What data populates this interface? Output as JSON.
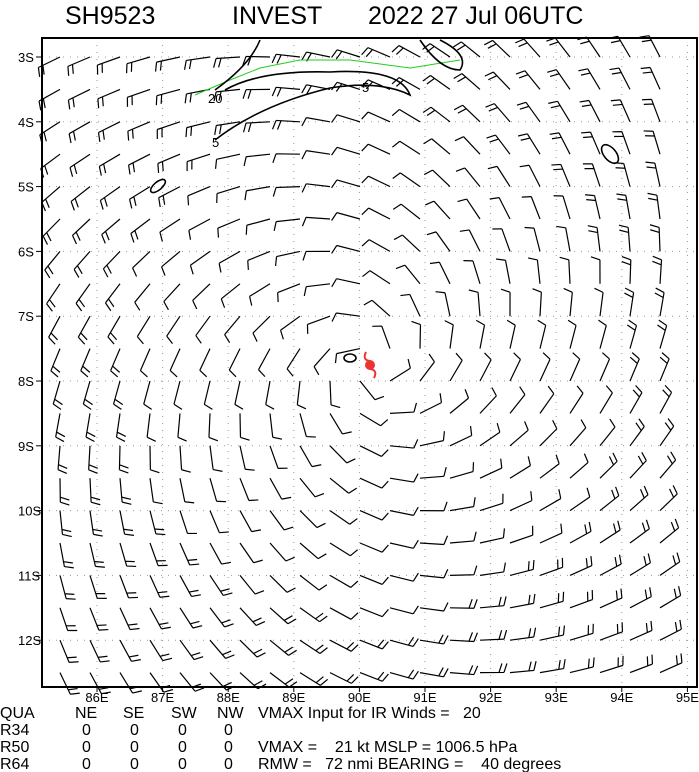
{
  "header": {
    "storm": "SH9523",
    "name": "INVEST",
    "date": "2022 27 Jul 06UTC"
  },
  "map": {
    "lat_labels": [
      "3S",
      "4S",
      "5S",
      "6S",
      "7S",
      "8S",
      "9S",
      "10S",
      "11S",
      "12S"
    ],
    "lon_labels": [
      "86E",
      "87E",
      "88E",
      "89E",
      "90E",
      "91E",
      "92E",
      "93E",
      "94E",
      "95E"
    ],
    "contour_labels": [
      "20",
      "5",
      "5"
    ]
  },
  "table": {
    "header": [
      "QUA",
      "NE",
      "SE",
      "SW",
      "NW"
    ],
    "rows": [
      [
        "R34",
        "0",
        "0",
        "0",
        "0"
      ],
      [
        "R50",
        "0",
        "0",
        "0",
        "0"
      ],
      [
        "R64",
        "0",
        "0",
        "0",
        "0"
      ]
    ]
  },
  "info": [
    "VMAX Input for IR Winds =   20",
    "VMAX =    21 kt MSLP = 1006.5 hPa",
    "RMW =   72 nmi BEARING =    40 degrees"
  ]
}
